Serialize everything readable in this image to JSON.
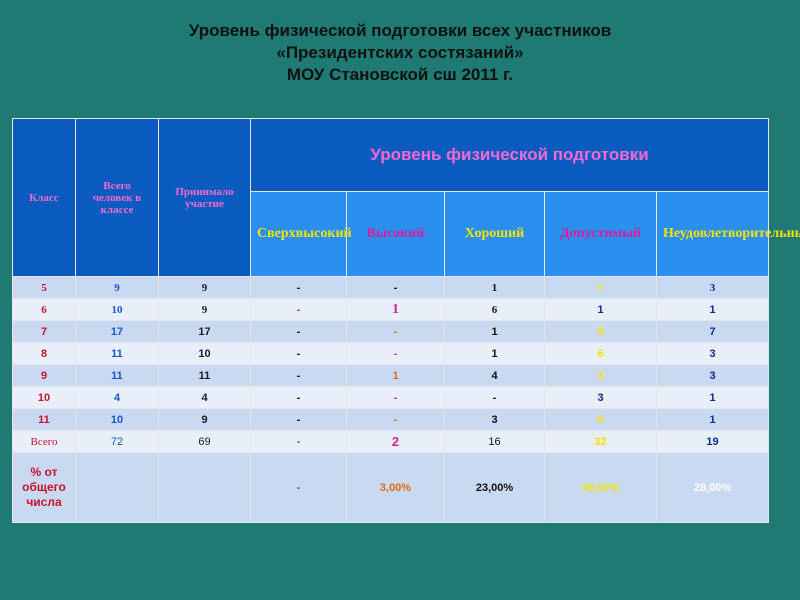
{
  "title": {
    "line1": "Уровень физической подготовки всех участников",
    "line2": "«Президентских состязаний»",
    "line3": "МОУ Становской сш  2011 г."
  },
  "table": {
    "header": {
      "class": "Класс",
      "total": "Всего человек в классе",
      "participated": "Принимало участие",
      "level_group": "Уровень физической подготовки",
      "levels": [
        "Сверхвысокий",
        "Высокий",
        "Хороший",
        "Допустимый",
        "Неудовлетворительный"
      ]
    },
    "rows": [
      {
        "cls": "5",
        "total": "9",
        "part": "9",
        "l1": "-",
        "l2": "-",
        "l3": "1",
        "l4": "5",
        "l5": "3"
      },
      {
        "cls": "6",
        "total": "10",
        "part": "9",
        "l1": "-",
        "l2": "1",
        "l3": "6",
        "l4": "1",
        "l5": "1"
      },
      {
        "cls": "7",
        "total": "17",
        "part": "17",
        "l1": "-",
        "l2": "-",
        "l3": "1",
        "l4": "9",
        "l5": "7"
      },
      {
        "cls": "8",
        "total": "11",
        "part": "10",
        "l1": "-",
        "l2": "-",
        "l3": "1",
        "l4": "6",
        "l5": "3"
      },
      {
        "cls": "9",
        "total": "11",
        "part": "11",
        "l1": "-",
        "l2": "1",
        "l3": "4",
        "l4": "3",
        "l5": "3"
      },
      {
        "cls": "10",
        "total": "4",
        "part": "4",
        "l1": "-",
        "l2": "-",
        "l3": "-",
        "l4": "3",
        "l5": "1"
      },
      {
        "cls": "11",
        "total": "10",
        "part": "9",
        "l1": "-",
        "l2": "-",
        "l3": "3",
        "l4": "5",
        "l5": "1"
      },
      {
        "cls": "Всего",
        "total": "72",
        "part": "69",
        "l1": "-",
        "l2": "2",
        "l3": "16",
        "l4": "32",
        "l5": "19"
      }
    ],
    "percent_row": {
      "label": "% от общего числа",
      "l1": "-",
      "l2": "3,00%",
      "l3": "23,00%",
      "l4": "46,00%",
      "l5": "28,00%"
    }
  },
  "colors": {
    "background": "#1f7a74",
    "header_dark": "#0a5bbf",
    "header_light": "#2b8ff0",
    "row_a": "#c9d9f1",
    "row_b": "#e8eff8"
  }
}
